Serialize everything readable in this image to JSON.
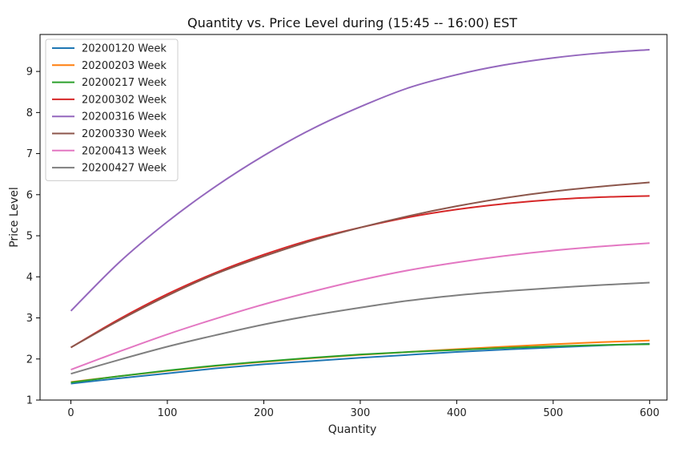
{
  "chart_data": {
    "type": "line",
    "title": "Quantity vs. Price Level during  (15:45 -- 16:00) EST",
    "xlabel": "Quantity",
    "ylabel": "Price Level",
    "xlim": [
      -32,
      618
    ],
    "ylim": [
      1,
      9.9
    ],
    "xticks": [
      0,
      100,
      200,
      300,
      400,
      500,
      600
    ],
    "yticks": [
      1,
      2,
      3,
      4,
      5,
      6,
      7,
      8,
      9
    ],
    "grid": false,
    "legend_position": "top-left",
    "x": [
      0,
      50,
      100,
      150,
      200,
      250,
      300,
      350,
      400,
      450,
      500,
      550,
      600
    ],
    "series": [
      {
        "name": "20200120 Week",
        "color": "#1f77b4",
        "values": [
          1.4,
          1.53,
          1.65,
          1.77,
          1.87,
          1.95,
          2.03,
          2.1,
          2.17,
          2.23,
          2.28,
          2.33,
          2.37
        ]
      },
      {
        "name": "20200203 Week",
        "color": "#ff7f0e",
        "values": [
          1.44,
          1.58,
          1.71,
          1.83,
          1.93,
          2.02,
          2.1,
          2.17,
          2.24,
          2.3,
          2.36,
          2.41,
          2.45
        ]
      },
      {
        "name": "20200217 Week",
        "color": "#2ca02c",
        "values": [
          1.43,
          1.58,
          1.72,
          1.84,
          1.94,
          2.03,
          2.11,
          2.17,
          2.22,
          2.27,
          2.31,
          2.34,
          2.36
        ]
      },
      {
        "name": "20200302 Week",
        "color": "#d62728",
        "values": [
          2.28,
          2.97,
          3.58,
          4.1,
          4.54,
          4.91,
          5.2,
          5.45,
          5.64,
          5.78,
          5.88,
          5.94,
          5.97
        ]
      },
      {
        "name": "20200316 Week",
        "color": "#9467bd",
        "values": [
          3.17,
          4.35,
          5.34,
          6.2,
          6.95,
          7.6,
          8.14,
          8.6,
          8.92,
          9.16,
          9.33,
          9.45,
          9.53
        ]
      },
      {
        "name": "20200330 Week",
        "color": "#8c564b",
        "values": [
          2.28,
          2.94,
          3.54,
          4.07,
          4.5,
          4.88,
          5.2,
          5.48,
          5.72,
          5.92,
          6.08,
          6.2,
          6.3
        ]
      },
      {
        "name": "20200413 Week",
        "color": "#e377c2",
        "values": [
          1.74,
          2.18,
          2.6,
          2.98,
          3.33,
          3.64,
          3.92,
          4.16,
          4.35,
          4.51,
          4.64,
          4.74,
          4.82
        ]
      },
      {
        "name": "20200427 Week",
        "color": "#7f7f7f",
        "values": [
          1.64,
          1.98,
          2.3,
          2.58,
          2.84,
          3.06,
          3.25,
          3.42,
          3.55,
          3.65,
          3.73,
          3.8,
          3.86
        ]
      }
    ]
  }
}
